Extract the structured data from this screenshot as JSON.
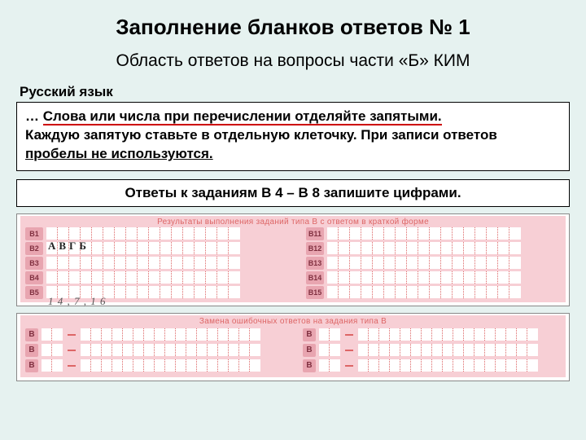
{
  "title": "Заполнение бланков ответов № 1",
  "subtitle": "Область ответов на вопросы части «Б» КИМ",
  "section_label": "Русский язык",
  "instruction": {
    "prefix": "… ",
    "highlight1": "Слова или числа при перечислении отделяйте запятыми.",
    "line2a": "Каждую запятую ставьте в отдельную клеточку. При записи ответов ",
    "highlight2": "пробелы не используются."
  },
  "instruction2": "Ответы к заданиям В 4 – В 8 запишите цифрами.",
  "form1": {
    "header": "Результаты выполнения заданий типа В с ответом в краткой форме",
    "left_labels": [
      "В1",
      "В2",
      "В3",
      "В4",
      "В5"
    ],
    "right_labels": [
      "В11",
      "В12",
      "В13",
      "В14",
      "В15"
    ],
    "cells_per_row": 17,
    "handwritten_b1": "АВГБ",
    "handwritten_b5": "1 4 , 7 , 1 6",
    "colors": {
      "panel_bg": "#f7cfd5",
      "label_bg": "#e8a5b0",
      "label_fg": "#803040",
      "cell_bg": "#ffffff",
      "cell_border": "#d66"
    }
  },
  "form2": {
    "header": "Замена ошибочных ответов на задания типа В",
    "rows": 3,
    "label": "В",
    "short_cells": 2,
    "long_cells": 17
  },
  "page_bg": "#e6f2f0"
}
